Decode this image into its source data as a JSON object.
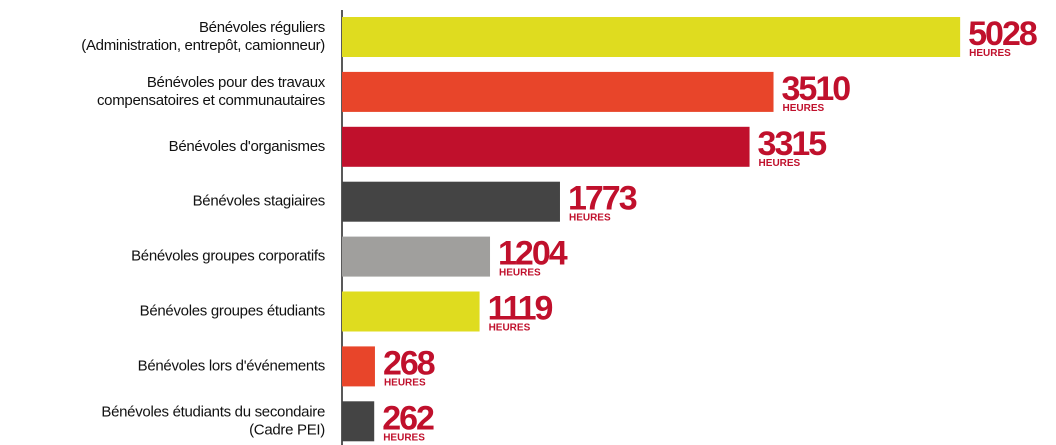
{
  "chart_data": {
    "type": "hbar",
    "categories": [
      [
        "Bénévoles réguliers",
        "(Administration, entrepôt, camionneur)"
      ],
      [
        "Bénévoles pour des travaux",
        "compensatoires et communautaires"
      ],
      [
        "Bénévoles d'organismes"
      ],
      [
        "Bénévoles stagiaires"
      ],
      [
        "Bénévoles groupes corporatifs"
      ],
      [
        "Bénévoles groupes étudiants"
      ],
      [
        "Bénévoles lors d'événements"
      ],
      [
        "Bénévoles étudiants du secondaire",
        "(Cadre PEI)"
      ]
    ],
    "values": [
      5028,
      3510,
      3315,
      1773,
      1204,
      1119,
      268,
      262
    ],
    "colors": [
      "#dfdc1f",
      "#e8452a",
      "#c0102c",
      "#444444",
      "#a09f9d",
      "#dfdc1f",
      "#e8452a",
      "#444444"
    ],
    "unit_label": "HEURES",
    "label_color": "#c0102c",
    "xlim": [
      0,
      5100
    ]
  }
}
